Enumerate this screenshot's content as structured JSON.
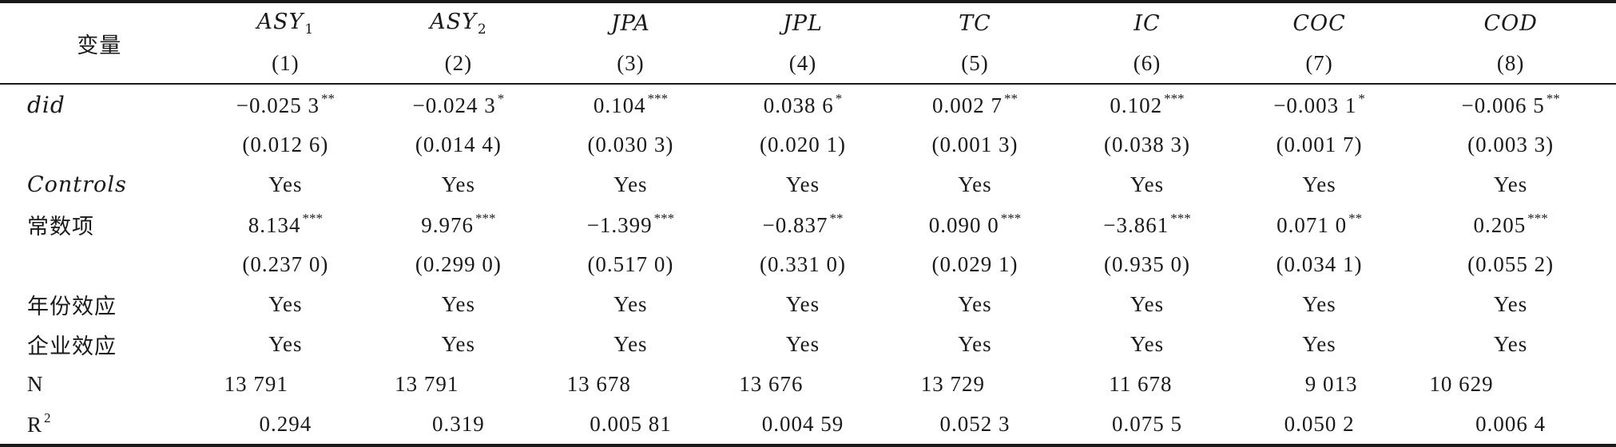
{
  "header": {
    "variable_label": "变量",
    "columns": [
      {
        "name": "ASY",
        "sub": "1",
        "num": "(1)"
      },
      {
        "name": "ASY",
        "sub": "2",
        "num": "(2)"
      },
      {
        "name": "JPA",
        "sub": "",
        "num": "(3)"
      },
      {
        "name": "JPL",
        "sub": "",
        "num": "(4)"
      },
      {
        "name": "TC",
        "sub": "",
        "num": "(5)"
      },
      {
        "name": "IC",
        "sub": "",
        "num": "(6)"
      },
      {
        "name": "COC",
        "sub": "",
        "num": "(7)"
      },
      {
        "name": "COD",
        "sub": "",
        "num": "(8)"
      }
    ]
  },
  "rows": {
    "did": {
      "label": "did",
      "coef": [
        {
          "v": "−0.025 3",
          "s": "**"
        },
        {
          "v": "−0.024 3",
          "s": "*"
        },
        {
          "v": "0.104",
          "s": "***"
        },
        {
          "v": "0.038 6",
          "s": "*"
        },
        {
          "v": "0.002 7",
          "s": "**"
        },
        {
          "v": "0.102",
          "s": "***"
        },
        {
          "v": "−0.003 1",
          "s": "*"
        },
        {
          "v": "−0.006 5",
          "s": "**"
        }
      ],
      "se": [
        "(0.012 6)",
        "(0.014 4)",
        "(0.030 3)",
        "(0.020 1)",
        "(0.001 3)",
        "(0.038 3)",
        "(0.001 7)",
        "(0.003 3)"
      ]
    },
    "controls": {
      "label": "Controls",
      "values": [
        "Yes",
        "Yes",
        "Yes",
        "Yes",
        "Yes",
        "Yes",
        "Yes",
        "Yes"
      ]
    },
    "constant": {
      "label": "常数项",
      "coef": [
        {
          "v": "8.134",
          "s": "***"
        },
        {
          "v": "9.976",
          "s": "***"
        },
        {
          "v": "−1.399",
          "s": "***"
        },
        {
          "v": "−0.837",
          "s": "**"
        },
        {
          "v": "0.090 0",
          "s": "***"
        },
        {
          "v": "−3.861",
          "s": "***"
        },
        {
          "v": "0.071 0",
          "s": "**"
        },
        {
          "v": "0.205",
          "s": "***"
        }
      ],
      "se": [
        "(0.237 0)",
        "(0.299 0)",
        "(0.517 0)",
        "(0.331 0)",
        "(0.029 1)",
        "(0.935 0)",
        "(0.034 1)",
        "(0.055 2)"
      ]
    },
    "year_fe": {
      "label": "年份效应",
      "values": [
        "Yes",
        "Yes",
        "Yes",
        "Yes",
        "Yes",
        "Yes",
        "Yes",
        "Yes"
      ]
    },
    "firm_fe": {
      "label": "企业效应",
      "values": [
        "Yes",
        "Yes",
        "Yes",
        "Yes",
        "Yes",
        "Yes",
        "Yes",
        "Yes"
      ]
    },
    "n": {
      "label": "N",
      "values": [
        "13 791",
        "13 791",
        "13 678",
        "13 676",
        "13 729",
        "11 678",
        "9 013",
        "10 629"
      ]
    },
    "r2": {
      "label": "R",
      "label_sup": "2",
      "values": [
        "0.294",
        "0.319",
        "0.005 81",
        "0.004 59",
        "0.052 3",
        "0.075 5",
        "0.050 2",
        "0.006 4"
      ]
    }
  }
}
